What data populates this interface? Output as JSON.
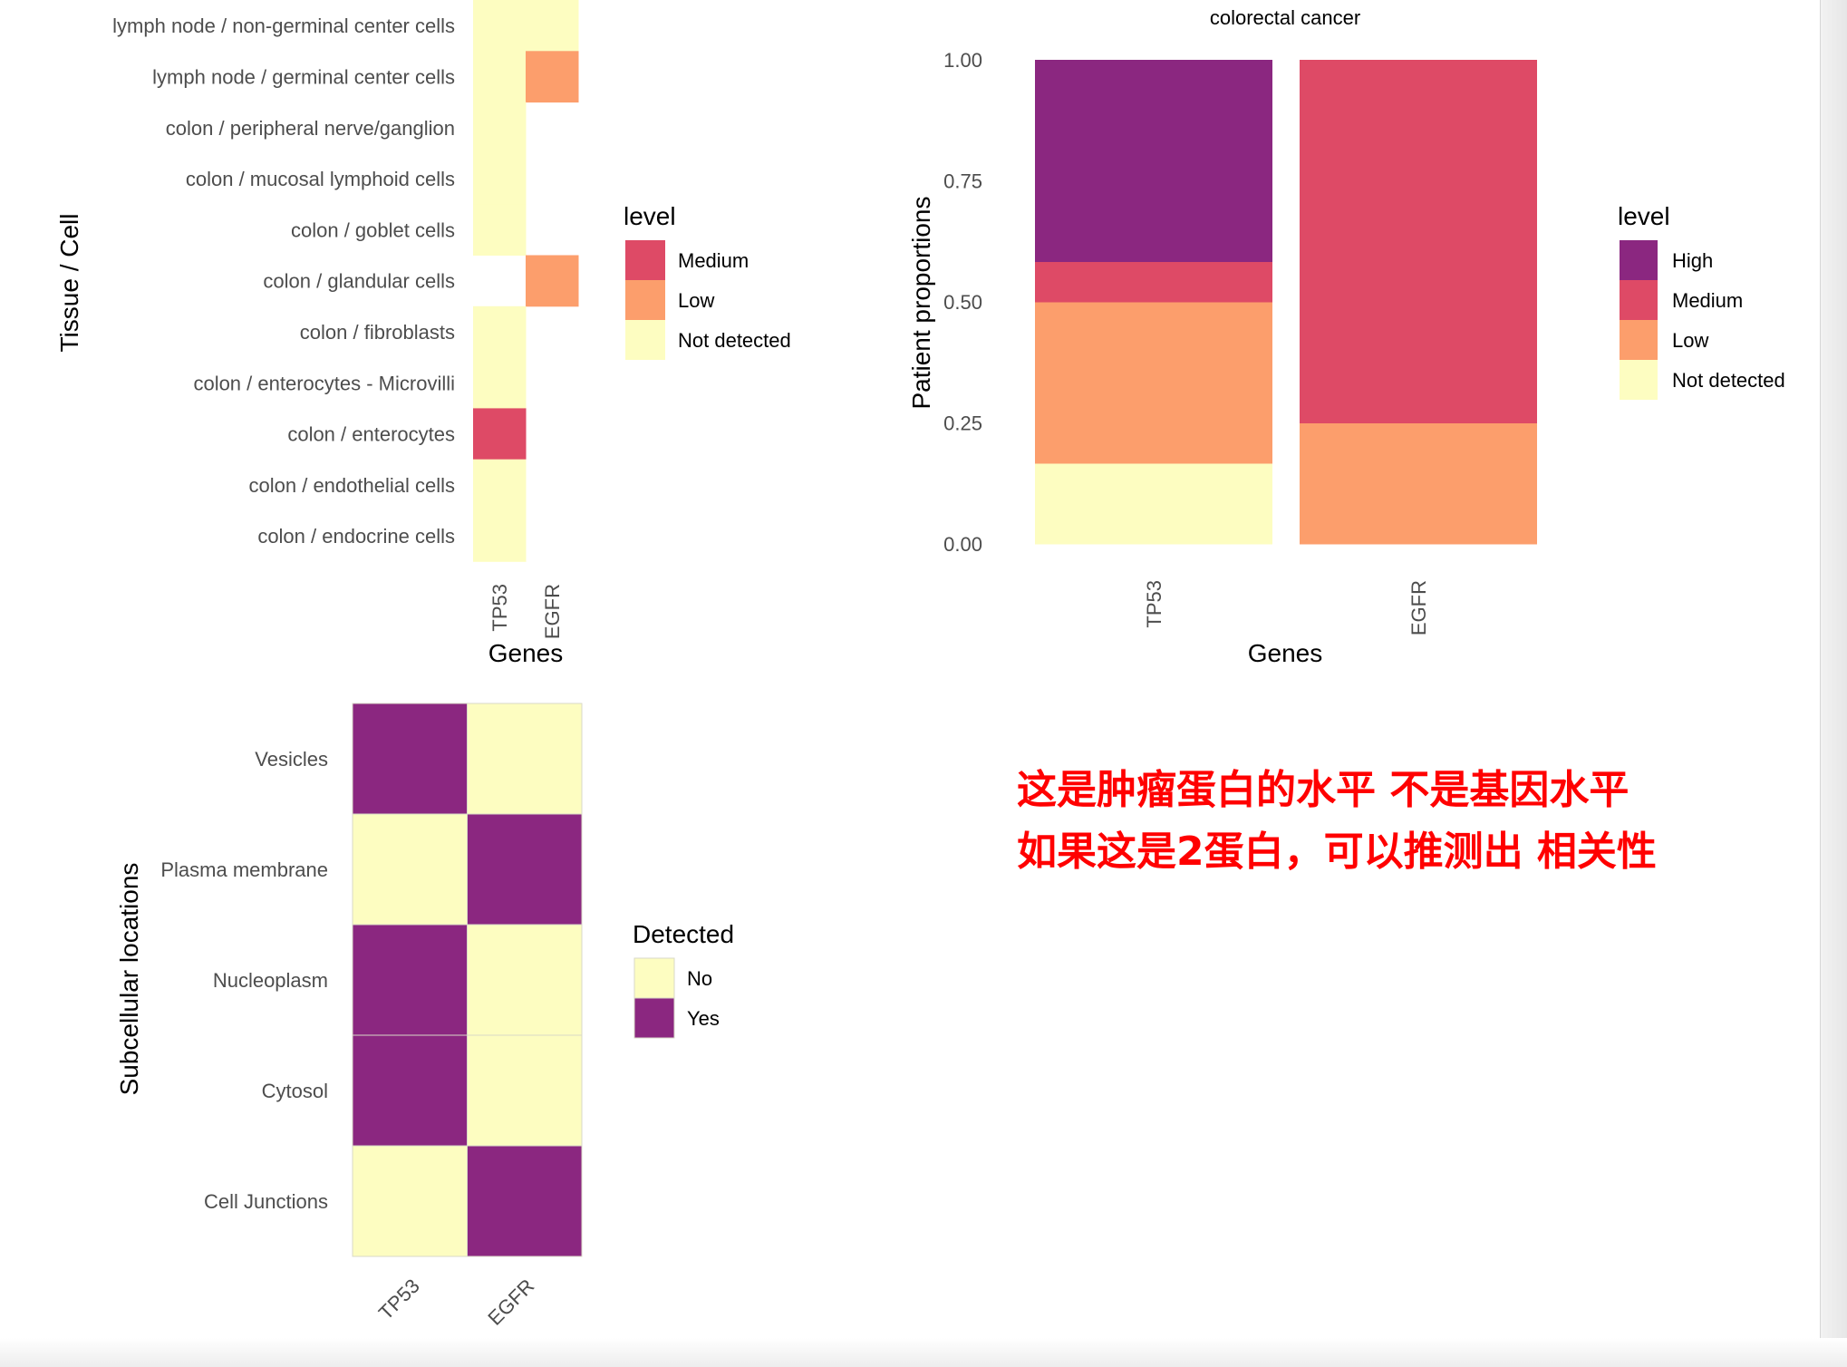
{
  "colors": {
    "High": "#8B2780",
    "Medium": "#DE4A66",
    "Low": "#FC9E6C",
    "Not detected": "#FDFDC1",
    "No": "#FDFDC1",
    "Yes": "#8B2780",
    "annotation": "#FF0000"
  },
  "annotation": {
    "line1": "这是肿瘤蛋白的水平 不是基因水平",
    "line2": "如果这是2蛋白，可以推测出 相关性"
  },
  "chart_data": [
    {
      "type": "heatmap",
      "xlabel": "Genes",
      "ylabel": "Tissue / Cell",
      "x": [
        "TP53",
        "EGFR"
      ],
      "y": [
        "lymph node / non-germinal center cells",
        "lymph node / germinal center cells",
        "colon / peripheral nerve/ganglion",
        "colon / mucosal lymphoid cells",
        "colon / goblet cells",
        "colon / glandular cells",
        "colon / fibroblasts",
        "colon / enterocytes - Microvilli",
        "colon / enterocytes",
        "colon / endothelial cells",
        "colon / endocrine cells"
      ],
      "values": [
        [
          "Not detected",
          "Not detected"
        ],
        [
          "Not detected",
          "Low"
        ],
        [
          "Not detected",
          null
        ],
        [
          "Not detected",
          null
        ],
        [
          "Not detected",
          null
        ],
        [
          null,
          "Low"
        ],
        [
          "Not detected",
          null
        ],
        [
          "Not detected",
          null
        ],
        [
          "Medium",
          null
        ],
        [
          "Not detected",
          null
        ],
        [
          "Not detected",
          null
        ]
      ],
      "legend": {
        "title": "level",
        "entries": [
          "Medium",
          "Low",
          "Not detected"
        ],
        "position": "right"
      }
    },
    {
      "type": "bar",
      "stacked": true,
      "title": "colorectal cancer",
      "xlabel": "Genes",
      "ylabel": "Patient proportions",
      "categories": [
        "TP53",
        "EGFR"
      ],
      "ylim": [
        0,
        1
      ],
      "yticks": [
        "0.00",
        "0.25",
        "0.50",
        "0.75",
        "1.00"
      ],
      "series": [
        {
          "name": "Not detected",
          "values": [
            0.1667,
            0
          ]
        },
        {
          "name": "Low",
          "values": [
            0.3333,
            0.25
          ]
        },
        {
          "name": "Medium",
          "values": [
            0.0833,
            0.75
          ]
        },
        {
          "name": "High",
          "values": [
            0.4167,
            0
          ]
        }
      ],
      "legend": {
        "title": "level",
        "entries": [
          "High",
          "Medium",
          "Low",
          "Not detected"
        ],
        "position": "right"
      }
    },
    {
      "type": "heatmap",
      "xlabel": "Genes",
      "ylabel": "Subcellular locations",
      "x": [
        "TP53",
        "EGFR"
      ],
      "y": [
        "Vesicles",
        "Plasma membrane",
        "Nucleoplasm",
        "Cytosol",
        "Cell Junctions"
      ],
      "values": [
        [
          "Yes",
          "No"
        ],
        [
          "No",
          "Yes"
        ],
        [
          "Yes",
          "No"
        ],
        [
          "Yes",
          "No"
        ],
        [
          "No",
          "Yes"
        ]
      ],
      "legend": {
        "title": "Detected",
        "entries": [
          "No",
          "Yes"
        ],
        "position": "right"
      }
    }
  ]
}
